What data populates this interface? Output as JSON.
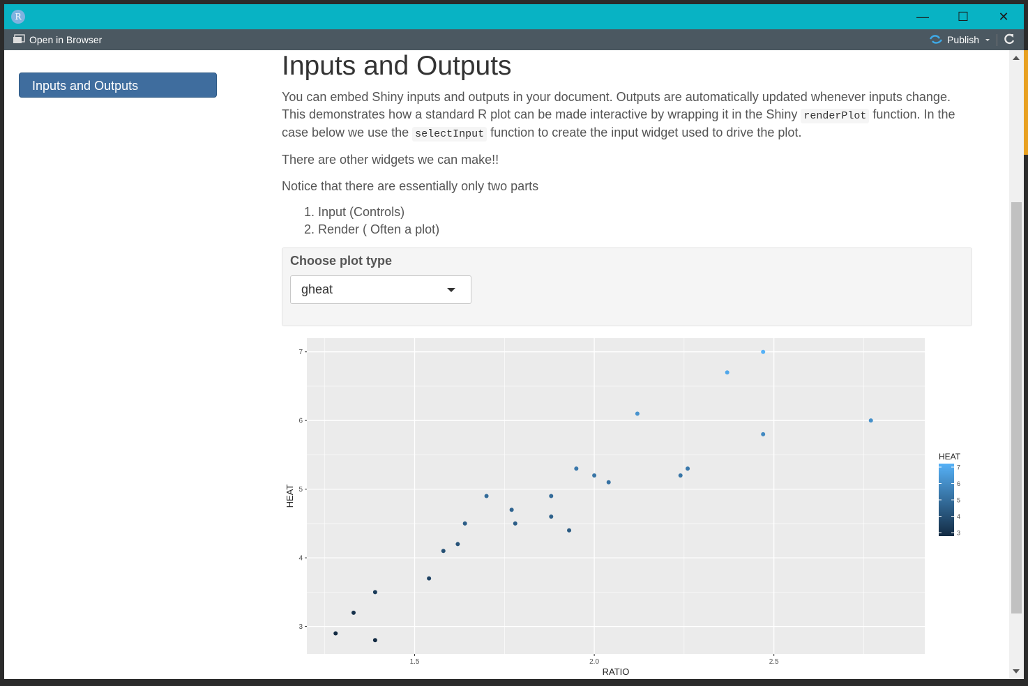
{
  "window": {
    "app_icon_letter": "R",
    "minimize_glyph": "—",
    "maximize_glyph": "☐",
    "close_glyph": "✕"
  },
  "toolbar": {
    "open_in_browser": "Open in Browser",
    "publish": "Publish",
    "icons": [
      "browser-icon",
      "publish-icon",
      "chevron-down-icon",
      "refresh-icon"
    ]
  },
  "sidebar": {
    "toc_item": "Inputs and Outputs"
  },
  "main": {
    "title": "Inputs and Outputs",
    "p1_line1": "You can embed Shiny inputs and outputs in your document. Outputs are automatically updated whenever inputs change.",
    "p1_line2_a": "This demonstrates how a standard R plot can be made interactive by wrapping it in the Shiny ",
    "p1_code1": "renderPlot",
    "p1_line2_b": " function. In the",
    "p1_line3_a": "case below we use the ",
    "p1_code2": "selectInput",
    "p1_line3_b": " function to create the input widget used to drive the plot.",
    "p2": "There are other widgets we can make!!",
    "p3": "Notice that there are essentially only two parts",
    "list": [
      "1. Input (Controls)",
      "2. Render ( Often a plot)"
    ],
    "select_label": "Choose plot type",
    "select_value": "gheat"
  },
  "chart_data": {
    "type": "scatter",
    "title": "",
    "xlabel": "RATIO",
    "ylabel": "HEAT",
    "xlim": [
      1.2,
      2.92
    ],
    "ylim": [
      2.6,
      7.2
    ],
    "xticks": [
      1.5,
      2.0,
      2.5
    ],
    "xtick_labels": [
      "1.5",
      "2.0",
      "2.5"
    ],
    "yticks": [
      3,
      4,
      5,
      6,
      7
    ],
    "ytick_labels": [
      "3",
      "4",
      "5",
      "6",
      "7"
    ],
    "grid": true,
    "legend": {
      "title": "HEAT",
      "placement": "right",
      "values": [
        3,
        4,
        5,
        6,
        7
      ],
      "labels": [
        "3",
        "4",
        "5",
        "6",
        "7"
      ],
      "low_color": "#132b43",
      "high_color": "#56b1f7"
    },
    "points": [
      {
        "x": 1.28,
        "y": 2.9
      },
      {
        "x": 1.33,
        "y": 3.2
      },
      {
        "x": 1.39,
        "y": 3.5
      },
      {
        "x": 1.39,
        "y": 2.8
      },
      {
        "x": 1.54,
        "y": 3.7
      },
      {
        "x": 1.58,
        "y": 4.1
      },
      {
        "x": 1.62,
        "y": 4.2
      },
      {
        "x": 1.64,
        "y": 4.5
      },
      {
        "x": 1.7,
        "y": 4.9
      },
      {
        "x": 1.77,
        "y": 4.7
      },
      {
        "x": 1.78,
        "y": 4.5
      },
      {
        "x": 1.88,
        "y": 4.9
      },
      {
        "x": 1.88,
        "y": 4.6
      },
      {
        "x": 1.93,
        "y": 4.4
      },
      {
        "x": 1.95,
        "y": 5.3
      },
      {
        "x": 2.0,
        "y": 5.2
      },
      {
        "x": 2.04,
        "y": 5.1
      },
      {
        "x": 2.12,
        "y": 6.1
      },
      {
        "x": 2.24,
        "y": 5.2
      },
      {
        "x": 2.26,
        "y": 5.3
      },
      {
        "x": 2.37,
        "y": 6.7
      },
      {
        "x": 2.47,
        "y": 7.0
      },
      {
        "x": 2.47,
        "y": 5.8
      },
      {
        "x": 2.77,
        "y": 6.0
      }
    ]
  }
}
